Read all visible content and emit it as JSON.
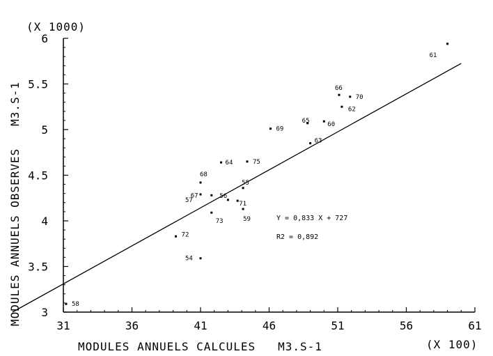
{
  "chart_data": {
    "type": "scatter",
    "xlabel": "MODULES ANNUELS CALCULES   M3.S-1",
    "x_multiplier": "(X 100)",
    "ylabel": "MODULES ANNUELS OBSERVES   M3.S-1",
    "y_multiplier": "(X 1000)",
    "xlim": [
      31,
      61
    ],
    "ylim": [
      3,
      6
    ],
    "x_ticks": [
      "31",
      "36",
      "41",
      "46",
      "51",
      "56",
      "61"
    ],
    "y_ticks": [
      "3",
      "3.5",
      "4",
      "4.5",
      "5",
      "5.5",
      "6"
    ],
    "points": [
      {
        "label": "58",
        "x": 31.2,
        "y": 3.09
      },
      {
        "label": "72",
        "x": 39.2,
        "y": 3.83
      },
      {
        "label": "54",
        "x": 41.0,
        "y": 3.59
      },
      {
        "label": "68",
        "x": 41.0,
        "y": 4.42
      },
      {
        "label": "57",
        "x": 41.0,
        "y": 4.29
      },
      {
        "label": "67",
        "x": 41.8,
        "y": 4.28
      },
      {
        "label": "73",
        "x": 41.8,
        "y": 4.09
      },
      {
        "label": "64",
        "x": 42.5,
        "y": 4.64
      },
      {
        "label": "56",
        "x": 43.0,
        "y": 4.23
      },
      {
        "label": "71",
        "x": 43.7,
        "y": 4.22
      },
      {
        "label": "55",
        "x": 44.1,
        "y": 4.36
      },
      {
        "label": "59",
        "x": 44.1,
        "y": 4.13
      },
      {
        "label": "75",
        "x": 44.4,
        "y": 4.65
      },
      {
        "label": "69",
        "x": 46.1,
        "y": 5.01
      },
      {
        "label": "65",
        "x": 48.8,
        "y": 5.07
      },
      {
        "label": "63",
        "x": 49.0,
        "y": 4.85
      },
      {
        "label": "60",
        "x": 50.0,
        "y": 5.09
      },
      {
        "label": "66",
        "x": 51.1,
        "y": 5.38
      },
      {
        "label": "62",
        "x": 51.3,
        "y": 5.25
      },
      {
        "label": "70",
        "x": 51.9,
        "y": 5.36
      },
      {
        "label": "61",
        "x": 59.0,
        "y": 5.94
      }
    ],
    "regression_line": {
      "slope": 0.0833,
      "intercept": 0.727
    },
    "annotations": {
      "equation": "Y = 0,833 X + 727",
      "r2": "R2 = 0,892"
    }
  }
}
